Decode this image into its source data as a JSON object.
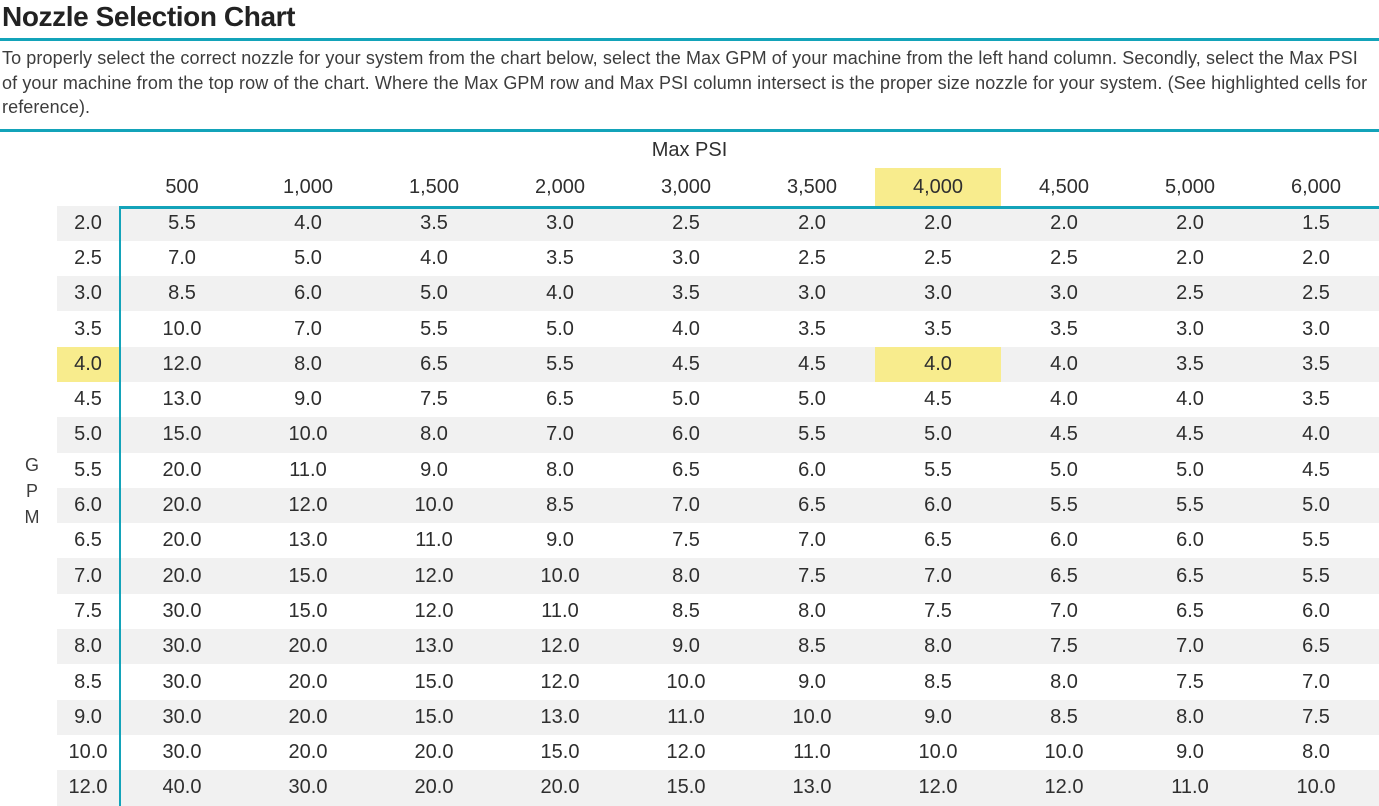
{
  "title": "Nozzle Selection Chart",
  "instructions": "To properly select the correct nozzle for your system from the chart below, select the Max GPM of your machine from the left hand column. Secondly, select the Max PSI of your machine from the top row of the chart. Where the Max GPM row and Max PSI column intersect is the proper size nozzle for your system. (See highlighted cells for reference).",
  "colors": {
    "accent_teal": "#13a3b9",
    "highlight_yellow": "#f8ec8d",
    "row_stripe": "#f1f1f1"
  },
  "table": {
    "col_axis_label": "Max PSI",
    "row_axis_label": "GPM",
    "col_headers": [
      "500",
      "1,000",
      "1,500",
      "2,000",
      "3,000",
      "3,500",
      "4,000",
      "4,500",
      "5,000",
      "6,000"
    ],
    "highlight": {
      "psi": "4,000",
      "gpm": "4.0"
    },
    "rows": [
      {
        "gpm": "2.0",
        "values": [
          "5.5",
          "4.0",
          "3.5",
          "3.0",
          "2.5",
          "2.0",
          "2.0",
          "2.0",
          "2.0",
          "1.5"
        ]
      },
      {
        "gpm": "2.5",
        "values": [
          "7.0",
          "5.0",
          "4.0",
          "3.5",
          "3.0",
          "2.5",
          "2.5",
          "2.5",
          "2.0",
          "2.0"
        ]
      },
      {
        "gpm": "3.0",
        "values": [
          "8.5",
          "6.0",
          "5.0",
          "4.0",
          "3.5",
          "3.0",
          "3.0",
          "3.0",
          "2.5",
          "2.5"
        ]
      },
      {
        "gpm": "3.5",
        "values": [
          "10.0",
          "7.0",
          "5.5",
          "5.0",
          "4.0",
          "3.5",
          "3.5",
          "3.5",
          "3.0",
          "3.0"
        ]
      },
      {
        "gpm": "4.0",
        "values": [
          "12.0",
          "8.0",
          "6.5",
          "5.5",
          "4.5",
          "4.5",
          "4.0",
          "4.0",
          "3.5",
          "3.5"
        ]
      },
      {
        "gpm": "4.5",
        "values": [
          "13.0",
          "9.0",
          "7.5",
          "6.5",
          "5.0",
          "5.0",
          "4.5",
          "4.0",
          "4.0",
          "3.5"
        ]
      },
      {
        "gpm": "5.0",
        "values": [
          "15.0",
          "10.0",
          "8.0",
          "7.0",
          "6.0",
          "5.5",
          "5.0",
          "4.5",
          "4.5",
          "4.0"
        ]
      },
      {
        "gpm": "5.5",
        "values": [
          "20.0",
          "11.0",
          "9.0",
          "8.0",
          "6.5",
          "6.0",
          "5.5",
          "5.0",
          "5.0",
          "4.5"
        ]
      },
      {
        "gpm": "6.0",
        "values": [
          "20.0",
          "12.0",
          "10.0",
          "8.5",
          "7.0",
          "6.5",
          "6.0",
          "5.5",
          "5.5",
          "5.0"
        ]
      },
      {
        "gpm": "6.5",
        "values": [
          "20.0",
          "13.0",
          "11.0",
          "9.0",
          "7.5",
          "7.0",
          "6.5",
          "6.0",
          "6.0",
          "5.5"
        ]
      },
      {
        "gpm": "7.0",
        "values": [
          "20.0",
          "15.0",
          "12.0",
          "10.0",
          "8.0",
          "7.5",
          "7.0",
          "6.5",
          "6.5",
          "5.5"
        ]
      },
      {
        "gpm": "7.5",
        "values": [
          "30.0",
          "15.0",
          "12.0",
          "11.0",
          "8.5",
          "8.0",
          "7.5",
          "7.0",
          "6.5",
          "6.0"
        ]
      },
      {
        "gpm": "8.0",
        "values": [
          "30.0",
          "20.0",
          "13.0",
          "12.0",
          "9.0",
          "8.5",
          "8.0",
          "7.5",
          "7.0",
          "6.5"
        ]
      },
      {
        "gpm": "8.5",
        "values": [
          "30.0",
          "20.0",
          "15.0",
          "12.0",
          "10.0",
          "9.0",
          "8.5",
          "8.0",
          "7.5",
          "7.0"
        ]
      },
      {
        "gpm": "9.0",
        "values": [
          "30.0",
          "20.0",
          "15.0",
          "13.0",
          "11.0",
          "10.0",
          "9.0",
          "8.5",
          "8.0",
          "7.5"
        ]
      },
      {
        "gpm": "10.0",
        "values": [
          "30.0",
          "20.0",
          "20.0",
          "15.0",
          "12.0",
          "11.0",
          "10.0",
          "10.0",
          "9.0",
          "8.0"
        ]
      },
      {
        "gpm": "12.0",
        "values": [
          "40.0",
          "30.0",
          "20.0",
          "20.0",
          "15.0",
          "13.0",
          "12.0",
          "12.0",
          "11.0",
          "10.0"
        ]
      }
    ]
  }
}
